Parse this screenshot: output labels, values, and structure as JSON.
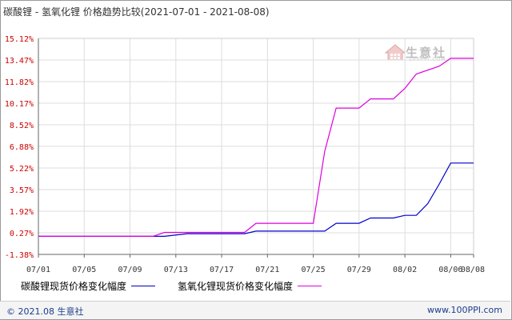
{
  "title": {
    "main": "碳酸锂 - 氢氧化锂 价格趋势比较",
    "range": "(2021-07-01 - 2021-08-08)"
  },
  "watermark": {
    "brand": "生意社",
    "site": "100PPI.COM"
  },
  "legend": [
    {
      "label": "碳酸锂现货价格变化幅度",
      "color": "#0000cc"
    },
    {
      "label": "氢氧化锂现货价格变化幅度",
      "color": "#dd00dd"
    }
  ],
  "footer": {
    "left": "© 2021.08 生意社",
    "right": "www.100PPI.com"
  },
  "colors": {
    "axis_tick": "#cc0000",
    "grid": "#dddddd",
    "series1": "#0000cc",
    "series2": "#dd00dd"
  },
  "chart_data": {
    "type": "line",
    "ylim": [
      -1.38,
      15.12
    ],
    "y_ticks": [
      "15.12%",
      "13.47%",
      "11.82%",
      "10.17%",
      "8.52%",
      "6.88%",
      "5.22%",
      "3.57%",
      "1.92%",
      "0.27%",
      "-1.38%"
    ],
    "y_tick_values": [
      15.12,
      13.47,
      11.82,
      10.17,
      8.52,
      6.88,
      5.22,
      3.57,
      1.92,
      0.27,
      -1.38
    ],
    "x_ticks": [
      "07/01",
      "07/05",
      "07/09",
      "07/13",
      "07/17",
      "07/21",
      "07/25",
      "07/29",
      "08/02",
      "08/06",
      "08/08"
    ],
    "x_tick_days": [
      0,
      4,
      8,
      12,
      16,
      20,
      24,
      28,
      32,
      36,
      38
    ],
    "grid": true,
    "series": [
      {
        "name": "碳酸锂现货价格变化幅度",
        "points": [
          [
            "07/01",
            0.0
          ],
          [
            "07/12",
            0.0
          ],
          [
            "07/14",
            0.2
          ],
          [
            "07/19",
            0.2
          ],
          [
            "07/20",
            0.4
          ],
          [
            "07/25",
            0.4
          ],
          [
            "07/26",
            0.4
          ],
          [
            "07/27",
            1.0
          ],
          [
            "07/29",
            1.0
          ],
          [
            "07/30",
            1.4
          ],
          [
            "08/01",
            1.4
          ],
          [
            "08/02",
            1.6
          ],
          [
            "08/03",
            1.6
          ],
          [
            "08/04",
            2.5
          ],
          [
            "08/05",
            4.0
          ],
          [
            "08/06",
            5.6
          ],
          [
            "08/08",
            5.6
          ]
        ]
      },
      {
        "name": "氢氧化锂现货价格变化幅度",
        "points": [
          [
            "07/01",
            0.0
          ],
          [
            "07/11",
            0.0
          ],
          [
            "07/12",
            0.3
          ],
          [
            "07/19",
            0.3
          ],
          [
            "07/20",
            1.0
          ],
          [
            "07/25",
            1.0
          ],
          [
            "07/26",
            6.5
          ],
          [
            "07/27",
            9.8
          ],
          [
            "07/29",
            9.8
          ],
          [
            "07/30",
            10.5
          ],
          [
            "08/01",
            10.5
          ],
          [
            "08/02",
            11.3
          ],
          [
            "08/03",
            12.4
          ],
          [
            "08/05",
            13.0
          ],
          [
            "08/06",
            13.6
          ],
          [
            "08/08",
            13.6
          ]
        ]
      }
    ]
  }
}
